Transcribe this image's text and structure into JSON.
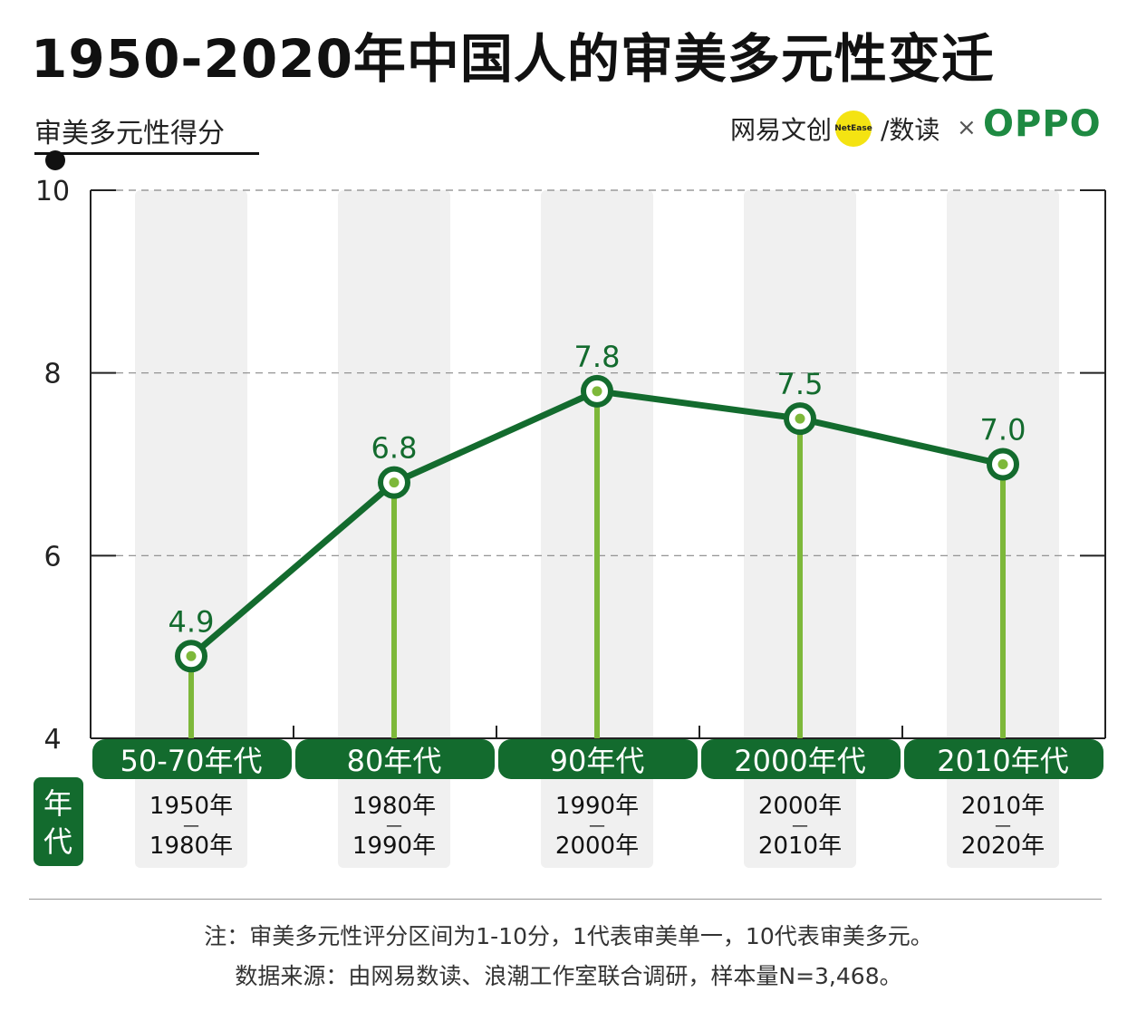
{
  "title": "1950-2020年中国人的审美多元性变迁",
  "subtitle": "审美多元性得分",
  "brands": {
    "netease": "网易文创",
    "netease_badge": "NetEase",
    "shudu": "/数读",
    "times": "×",
    "oppo": "OPPO"
  },
  "axis_side_label": [
    "年",
    "代"
  ],
  "chart_data": {
    "type": "line",
    "title": "1950-2020年中国人的审美多元性变迁",
    "ylabel": "审美多元性得分",
    "xlabel": "年代",
    "ylim": [
      4,
      10
    ],
    "yticks": [
      4,
      6,
      8,
      10
    ],
    "grid": true,
    "categories": [
      "50-70年代",
      "80年代",
      "90年代",
      "2000年代",
      "2010年代"
    ],
    "ranges": [
      [
        "1950年",
        "1980年"
      ],
      [
        "1980年",
        "1990年"
      ],
      [
        "1990年",
        "2000年"
      ],
      [
        "2000年",
        "2010年"
      ],
      [
        "2010年",
        "2020年"
      ]
    ],
    "range_separator": "—",
    "values": [
      4.9,
      6.8,
      7.8,
      7.5,
      7.0
    ],
    "value_labels": [
      "4.9",
      "6.8",
      "7.8",
      "7.5",
      "7.0"
    ],
    "colors": {
      "line": "#136b2e",
      "stem": "#7db83a",
      "band": "#f0f0f0",
      "category_bar": "#136b2e"
    }
  },
  "footnotes": [
    "注：审美多元性评分区间为1-10分，1代表审美单一，10代表审美多元。",
    "数据来源：由网易数读、浪潮工作室联合调研，样本量N=3,468。"
  ]
}
